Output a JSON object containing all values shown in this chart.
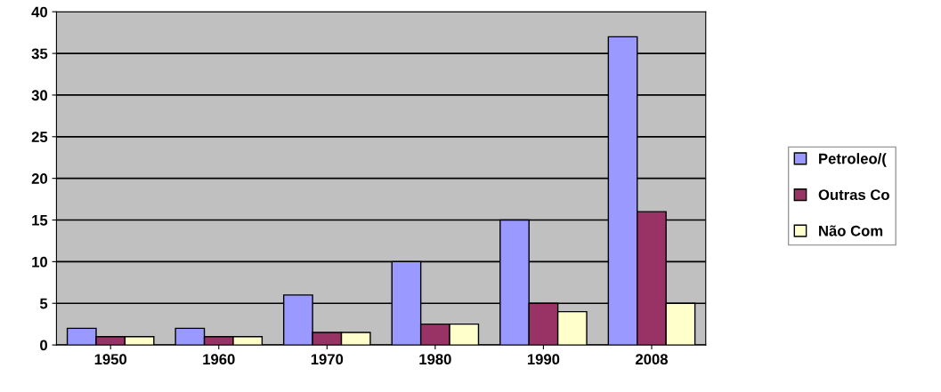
{
  "chart_data": {
    "type": "bar",
    "categories": [
      "1950",
      "1960",
      "1970",
      "1980",
      "1990",
      "2008"
    ],
    "series": [
      {
        "name": "Petroleo/(",
        "color": "#9999ff",
        "values": [
          2,
          2,
          6,
          10,
          15,
          37
        ]
      },
      {
        "name": "Outras Co",
        "color": "#993366",
        "values": [
          1,
          1,
          1.5,
          2.5,
          5,
          16
        ]
      },
      {
        "name": "Não Com",
        "color": "#ffffcc",
        "values": [
          1,
          1,
          1.5,
          2.5,
          4,
          5
        ]
      }
    ],
    "ylim": [
      0,
      40
    ],
    "yticks": [
      0,
      5,
      10,
      15,
      20,
      25,
      30,
      35,
      40
    ],
    "grid": "y",
    "legend": "right"
  }
}
